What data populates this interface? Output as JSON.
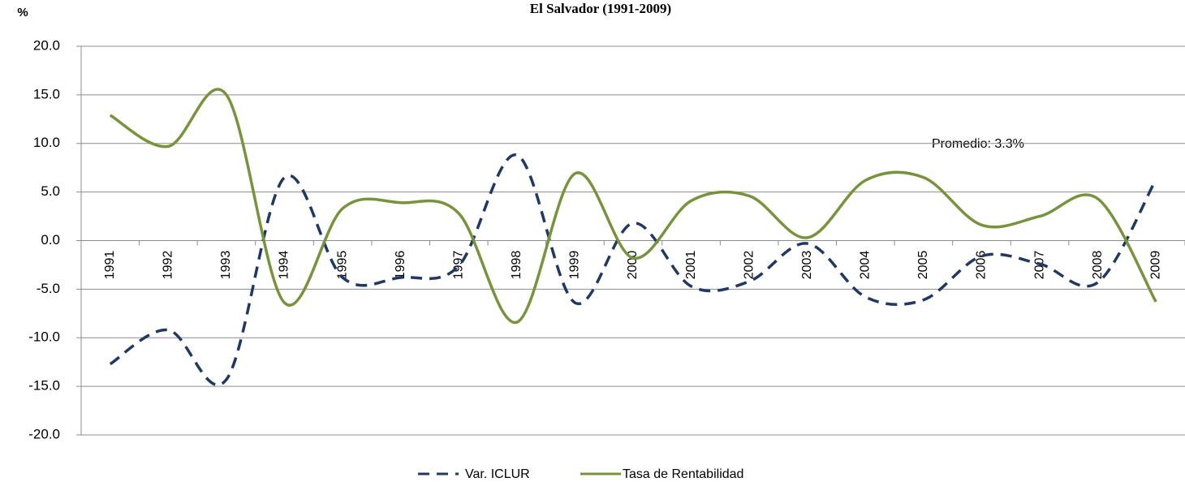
{
  "chart_data": {
    "type": "line",
    "title": "El Salvador (1991-2009)",
    "y_label": "%",
    "annotation": "Promedio: 3.3%",
    "categories": [
      "1991",
      "1992",
      "1993",
      "1994",
      "1995",
      "1996",
      "1997",
      "1998",
      "1999",
      "2000",
      "2001",
      "2002",
      "2003",
      "2004",
      "2005",
      "2006",
      "2007",
      "2008",
      "2009"
    ],
    "series": [
      {
        "name": "Var. ICLUR",
        "color": "#1f3864",
        "dash": true,
        "values": [
          -12.7,
          -9.2,
          -14.3,
          6.5,
          -3.8,
          -3.8,
          -2.6,
          8.8,
          -6.4,
          1.8,
          -4.7,
          -4.2,
          -0.3,
          -5.8,
          -6.1,
          -1.6,
          -2.4,
          -4.3,
          6.3
        ]
      },
      {
        "name": "Tasa de Rentabilidad",
        "color": "#77933c",
        "dash": false,
        "values": [
          12.9,
          9.7,
          15.0,
          -6.4,
          3.3,
          3.9,
          2.8,
          -8.4,
          6.9,
          -1.8,
          4.1,
          4.6,
          0.3,
          6.2,
          6.5,
          1.6,
          2.5,
          4.3,
          -6.3
        ]
      }
    ],
    "ylim": [
      -20,
      20
    ],
    "yticks": [
      {
        "value": -20,
        "label": "-20.0"
      },
      {
        "value": -15,
        "label": "-15.0"
      },
      {
        "value": -10,
        "label": "-10.0"
      },
      {
        "value": -5,
        "label": "-5.0"
      },
      {
        "value": 0,
        "label": "0.0"
      },
      {
        "value": 5,
        "label": "5.0"
      },
      {
        "value": 10,
        "label": "10.0"
      },
      {
        "value": 15,
        "label": "15.0"
      },
      {
        "value": 20,
        "label": "20.0"
      }
    ],
    "grid": true,
    "legend": "bottom"
  }
}
